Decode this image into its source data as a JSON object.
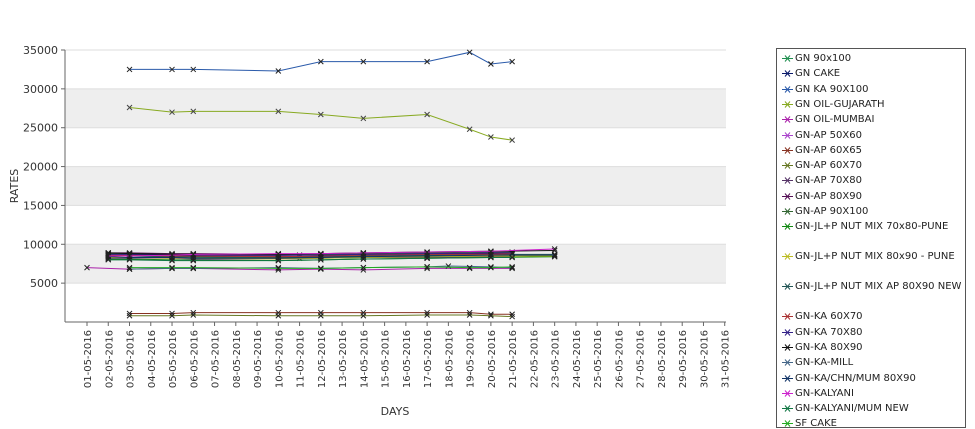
{
  "chart_data": {
    "type": "line",
    "xlabel": "DAYS",
    "ylabel": "RATES",
    "ylim": [
      0,
      35000
    ],
    "yticks": [
      5000,
      10000,
      15000,
      20000,
      25000,
      30000,
      35000
    ],
    "x": [
      "01-05-2016",
      "02-05-2016",
      "03-05-2016",
      "04-05-2016",
      "05-05-2016",
      "06-05-2016",
      "07-05-2016",
      "08-05-2016",
      "09-05-2016",
      "10-05-2016",
      "11-05-2016",
      "12-05-2016",
      "13-05-2016",
      "14-05-2016",
      "15-05-2016",
      "16-05-2016",
      "17-05-2016",
      "18-05-2016",
      "19-05-2016",
      "20-05-2016",
      "21-05-2016",
      "22-05-2016",
      "23-05-2016",
      "24-05-2016",
      "25-05-2016",
      "26-05-2016",
      "27-05-2016",
      "28-05-2016",
      "29-05-2016",
      "30-05-2016",
      "31-05-2016"
    ],
    "grid": "horizontal bands",
    "legend": "right",
    "series": [
      {
        "name": "GN 90x100",
        "color": "#1f8f4f",
        "points": [
          [
            1,
            8600
          ],
          [
            2,
            8500
          ],
          [
            4,
            8400
          ],
          [
            5,
            8300
          ],
          [
            9,
            8300
          ],
          [
            10,
            8200
          ],
          [
            11,
            8200
          ],
          [
            13,
            8300
          ],
          [
            16,
            8400
          ],
          [
            20,
            8400
          ]
        ]
      },
      {
        "name": "GN CAKE",
        "color": "#0a1a6a",
        "points": [
          [
            1,
            8900
          ],
          [
            2,
            8800
          ],
          [
            4,
            8700
          ],
          [
            5,
            8700
          ],
          [
            9,
            8600
          ],
          [
            10,
            8600
          ],
          [
            11,
            8600
          ],
          [
            13,
            8700
          ],
          [
            16,
            8800
          ],
          [
            19,
            8800
          ],
          [
            20,
            8900
          ]
        ]
      },
      {
        "name": "GN KA 90X100",
        "color": "#2a5aaa",
        "points": [
          [
            2,
            32500
          ],
          [
            4,
            32500
          ],
          [
            5,
            32500
          ],
          [
            9,
            32300
          ],
          [
            11,
            33500
          ],
          [
            13,
            33500
          ],
          [
            16,
            33500
          ],
          [
            18,
            34700
          ],
          [
            19,
            33200
          ],
          [
            20,
            33500
          ]
        ]
      },
      {
        "name": "GN OIL-GUJARATH",
        "color": "#88aa22",
        "points": [
          [
            2,
            27600
          ],
          [
            4,
            27000
          ],
          [
            5,
            27100
          ],
          [
            9,
            27100
          ],
          [
            11,
            26700
          ],
          [
            13,
            26200
          ],
          [
            16,
            26700
          ],
          [
            18,
            24800
          ],
          [
            19,
            23800
          ],
          [
            20,
            23400
          ]
        ]
      },
      {
        "name": "GN OIL-MUMBAI",
        "color": "#aa22aa",
        "points": [
          [
            0,
            7000
          ],
          [
            2,
            6800
          ],
          [
            4,
            6900
          ],
          [
            5,
            6900
          ],
          [
            9,
            6700
          ],
          [
            11,
            6800
          ],
          [
            13,
            6700
          ],
          [
            16,
            6900
          ],
          [
            18,
            6900
          ],
          [
            20,
            6900
          ]
        ]
      },
      {
        "name": "GN-AP 50X60",
        "color": "#aa44cc",
        "points": [
          [
            1,
            8200
          ],
          [
            2,
            8200
          ],
          [
            4,
            8200
          ],
          [
            5,
            8100
          ],
          [
            9,
            8100
          ],
          [
            11,
            8200
          ],
          [
            13,
            8400
          ],
          [
            16,
            8500
          ],
          [
            19,
            8600
          ],
          [
            20,
            8700
          ]
        ]
      },
      {
        "name": "GN-AP 60X65",
        "color": "#883322",
        "points": [
          [
            2,
            1100
          ],
          [
            4,
            1100
          ],
          [
            5,
            1200
          ],
          [
            9,
            1200
          ],
          [
            11,
            1200
          ],
          [
            13,
            1200
          ],
          [
            16,
            1200
          ],
          [
            18,
            1200
          ],
          [
            19,
            1000
          ],
          [
            20,
            1000
          ]
        ]
      },
      {
        "name": "GN-AP 60X70",
        "color": "#667722",
        "points": [
          [
            2,
            800
          ],
          [
            4,
            800
          ],
          [
            5,
            900
          ],
          [
            9,
            800
          ],
          [
            11,
            800
          ],
          [
            13,
            800
          ],
          [
            16,
            900
          ],
          [
            18,
            900
          ],
          [
            19,
            800
          ],
          [
            20,
            700
          ]
        ]
      },
      {
        "name": "GN-AP 70X80",
        "color": "#553366",
        "points": [
          [
            1,
            8800
          ],
          [
            2,
            8700
          ],
          [
            4,
            8600
          ],
          [
            5,
            8600
          ],
          [
            9,
            8500
          ],
          [
            11,
            8400
          ],
          [
            13,
            8300
          ],
          [
            16,
            8300
          ],
          [
            19,
            8400
          ],
          [
            20,
            8400
          ]
        ]
      },
      {
        "name": "GN-AP 80X90",
        "color": "#551155",
        "points": [
          [
            1,
            8900
          ],
          [
            2,
            8900
          ],
          [
            4,
            8800
          ],
          [
            5,
            8800
          ],
          [
            9,
            8700
          ],
          [
            11,
            8700
          ],
          [
            13,
            8800
          ],
          [
            16,
            8800
          ],
          [
            19,
            8800
          ],
          [
            20,
            8800
          ]
        ]
      },
      {
        "name": "GN-AP 90X100",
        "color": "#336633",
        "points": [
          [
            1,
            8800
          ],
          [
            2,
            8800
          ],
          [
            4,
            8700
          ],
          [
            5,
            8700
          ],
          [
            9,
            8600
          ],
          [
            11,
            8700
          ],
          [
            13,
            8800
          ],
          [
            16,
            8900
          ],
          [
            19,
            9000
          ],
          [
            20,
            9000
          ]
        ]
      },
      {
        "name": "GN-JL+P NUT MIX 70x80-PUNE",
        "color": "#118811",
        "points": [
          [
            1,
            8100
          ],
          [
            2,
            8100
          ],
          [
            4,
            8000
          ],
          [
            5,
            8000
          ],
          [
            9,
            7900
          ],
          [
            11,
            8000
          ],
          [
            13,
            8100
          ],
          [
            16,
            8200
          ],
          [
            19,
            8300
          ],
          [
            22,
            8400
          ]
        ]
      },
      {
        "name": "GN-JL+P NUT MIX 80x90 - PUNE",
        "color": "#bbbb22",
        "points": [
          [
            1,
            8300
          ],
          [
            2,
            8300
          ],
          [
            4,
            8200
          ],
          [
            5,
            8200
          ],
          [
            9,
            8100
          ],
          [
            11,
            8200
          ],
          [
            13,
            8300
          ],
          [
            16,
            8400
          ],
          [
            19,
            8500
          ],
          [
            22,
            8500
          ]
        ]
      },
      {
        "name": "GN-JL+P NUT MIX AP 80X90 NEW",
        "color": "#225555",
        "points": [
          [
            1,
            8500
          ],
          [
            2,
            8500
          ],
          [
            4,
            8400
          ],
          [
            5,
            8400
          ],
          [
            9,
            8300
          ],
          [
            11,
            8400
          ],
          [
            13,
            8500
          ],
          [
            16,
            8600
          ],
          [
            19,
            8700
          ],
          [
            22,
            8700
          ]
        ]
      },
      {
        "name": "GN-KA 60X70",
        "color": "#aa3333",
        "points": [
          [
            1,
            8600
          ],
          [
            2,
            8600
          ],
          [
            4,
            8500
          ],
          [
            5,
            8500
          ],
          [
            9,
            8400
          ],
          [
            11,
            8500
          ],
          [
            13,
            8600
          ],
          [
            16,
            8700
          ],
          [
            19,
            8700
          ],
          [
            20,
            8800
          ]
        ]
      },
      {
        "name": "GN-KA 70X80",
        "color": "#332288",
        "points": [
          [
            1,
            8700
          ],
          [
            2,
            8700
          ],
          [
            4,
            8600
          ],
          [
            5,
            8600
          ],
          [
            9,
            8600
          ],
          [
            11,
            8600
          ],
          [
            13,
            8700
          ],
          [
            16,
            8800
          ],
          [
            19,
            8900
          ],
          [
            20,
            8900
          ]
        ]
      },
      {
        "name": "GN-KA 80X90",
        "color": "#111111",
        "points": [
          [
            1,
            8900
          ],
          [
            2,
            8800
          ],
          [
            4,
            8700
          ],
          [
            5,
            8700
          ],
          [
            9,
            8700
          ],
          [
            11,
            8800
          ],
          [
            13,
            8900
          ],
          [
            16,
            9000
          ],
          [
            19,
            9100
          ],
          [
            22,
            9200
          ]
        ]
      },
      {
        "name": "GN-KA-MILL",
        "color": "#446688",
        "points": [
          [
            2,
            6800
          ],
          [
            4,
            6900
          ],
          [
            5,
            6900
          ],
          [
            9,
            7000
          ],
          [
            11,
            6900
          ],
          [
            13,
            7000
          ],
          [
            16,
            7100
          ],
          [
            17,
            7200
          ],
          [
            19,
            7100
          ],
          [
            20,
            7000
          ]
        ]
      },
      {
        "name": "GN-KA/CHN/MUM 80X90",
        "color": "#113366",
        "points": [
          [
            1,
            8400
          ],
          [
            2,
            8300
          ],
          [
            4,
            8300
          ],
          [
            5,
            8200
          ],
          [
            9,
            8200
          ],
          [
            11,
            8300
          ],
          [
            13,
            8400
          ],
          [
            16,
            8500
          ],
          [
            19,
            8600
          ],
          [
            22,
            8600
          ]
        ]
      },
      {
        "name": "GN-KALYANI",
        "color": "#cc22cc",
        "points": [
          [
            1,
            8500
          ],
          [
            2,
            8500
          ],
          [
            4,
            8600
          ],
          [
            5,
            8700
          ],
          [
            9,
            8800
          ],
          [
            11,
            8800
          ],
          [
            13,
            8900
          ],
          [
            16,
            9000
          ],
          [
            19,
            9100
          ],
          [
            22,
            9400
          ]
        ]
      },
      {
        "name": "GN-KALYANI/MUM NEW",
        "color": "#117744",
        "points": [
          [
            1,
            8000
          ],
          [
            2,
            8000
          ],
          [
            4,
            7900
          ],
          [
            5,
            7900
          ],
          [
            9,
            7900
          ],
          [
            11,
            8000
          ],
          [
            13,
            8100
          ],
          [
            16,
            8200
          ],
          [
            19,
            8300
          ],
          [
            20,
            8300
          ]
        ]
      },
      {
        "name": "SF CAKE",
        "color": "#22aa22",
        "points": [
          [
            2,
            7000
          ],
          [
            4,
            7000
          ],
          [
            5,
            7000
          ],
          [
            9,
            6900
          ],
          [
            11,
            6900
          ],
          [
            13,
            7000
          ],
          [
            16,
            7100
          ],
          [
            18,
            7000
          ],
          [
            19,
            7000
          ],
          [
            20,
            7100
          ]
        ]
      }
    ]
  }
}
